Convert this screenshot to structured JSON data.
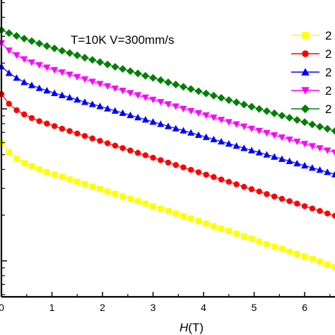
{
  "chart_data": {
    "type": "line",
    "title": "",
    "annotation": "T=10K   V=300mm/s",
    "xlabel": "",
    "xlabel_italic": "H",
    "xlabel_unit": "(T)",
    "ylabel": "",
    "xlim": [
      0,
      6.6
    ],
    "x_ticks": [
      0,
      1,
      2,
      3,
      4,
      5,
      6
    ],
    "y_scale": "log",
    "grid": false,
    "legend_position": "top-right",
    "x": [
      0.0,
      0.15,
      0.3,
      0.45,
      0.6,
      0.75,
      0.9,
      1.05,
      1.2,
      1.35,
      1.5,
      1.65,
      1.8,
      1.95,
      2.1,
      2.25,
      2.4,
      2.55,
      2.7,
      2.85,
      3.0,
      3.15,
      3.3,
      3.45,
      3.6,
      3.75,
      3.9,
      4.05,
      4.2,
      4.35,
      4.5,
      4.65,
      4.8,
      4.95,
      5.1,
      5.25,
      5.4,
      5.55,
      5.7,
      5.85,
      6.0,
      6.15,
      6.3,
      6.45,
      6.6
    ],
    "series": [
      {
        "name": "2",
        "color": "#ffff00",
        "marker": "square",
        "values": [
          0.6,
          0.52,
          0.47,
          0.44,
          0.42,
          0.4,
          0.385,
          0.37,
          0.357,
          0.344,
          0.332,
          0.32,
          0.308,
          0.297,
          0.286,
          0.276,
          0.266,
          0.256,
          0.247,
          0.238,
          0.229,
          0.221,
          0.213,
          0.205,
          0.197,
          0.19,
          0.183,
          0.176,
          0.169,
          0.163,
          0.157,
          0.151,
          0.145,
          0.14,
          0.134,
          0.129,
          0.124,
          0.12,
          0.115,
          0.111,
          0.107,
          0.103,
          0.099,
          0.095,
          0.091
        ]
      },
      {
        "name": "2",
        "color": "#ff0000",
        "marker": "circle",
        "values": [
          1.25,
          1.08,
          0.98,
          0.92,
          0.87,
          0.83,
          0.8,
          0.77,
          0.74,
          0.714,
          0.688,
          0.663,
          0.639,
          0.616,
          0.594,
          0.573,
          0.552,
          0.532,
          0.513,
          0.495,
          0.477,
          0.46,
          0.443,
          0.427,
          0.412,
          0.397,
          0.383,
          0.369,
          0.356,
          0.343,
          0.331,
          0.319,
          0.307,
          0.296,
          0.286,
          0.275,
          0.265,
          0.256,
          0.247,
          0.238,
          0.229,
          0.221,
          0.213,
          0.205,
          0.198
        ]
      },
      {
        "name": "2",
        "color": "#0000ff",
        "marker": "triangle-up",
        "values": [
          1.9,
          1.72,
          1.6,
          1.5,
          1.43,
          1.37,
          1.32,
          1.27,
          1.23,
          1.19,
          1.15,
          1.11,
          1.075,
          1.04,
          1.005,
          0.972,
          0.94,
          0.909,
          0.879,
          0.85,
          0.822,
          0.795,
          0.769,
          0.744,
          0.72,
          0.697,
          0.674,
          0.652,
          0.631,
          0.61,
          0.59,
          0.571,
          0.552,
          0.534,
          0.517,
          0.5,
          0.484,
          0.468,
          0.453,
          0.438,
          0.424,
          0.41,
          0.397,
          0.384,
          0.371
        ]
      },
      {
        "name": "2",
        "color": "#ff00ff",
        "marker": "triangle-down",
        "values": [
          2.7,
          2.42,
          2.25,
          2.12,
          2.02,
          1.94,
          1.87,
          1.8,
          1.74,
          1.68,
          1.62,
          1.565,
          1.51,
          1.46,
          1.41,
          1.362,
          1.316,
          1.272,
          1.229,
          1.188,
          1.148,
          1.11,
          1.073,
          1.037,
          1.002,
          0.969,
          0.937,
          0.906,
          0.876,
          0.847,
          0.819,
          0.792,
          0.766,
          0.741,
          0.717,
          0.694,
          0.671,
          0.649,
          0.628,
          0.608,
          0.588,
          0.569,
          0.551,
          0.533,
          0.516
        ]
      },
      {
        "name": "2",
        "color": "#008000",
        "marker": "diamond",
        "values": [
          3.3,
          3.15,
          3.02,
          2.9,
          2.79,
          2.69,
          2.59,
          2.5,
          2.41,
          2.33,
          2.25,
          2.17,
          2.1,
          2.03,
          1.96,
          1.89,
          1.83,
          1.77,
          1.71,
          1.65,
          1.6,
          1.545,
          1.494,
          1.445,
          1.397,
          1.351,
          1.306,
          1.263,
          1.221,
          1.181,
          1.142,
          1.104,
          1.068,
          1.033,
          0.999,
          0.966,
          0.934,
          0.903,
          0.874,
          0.845,
          0.817,
          0.79,
          0.764,
          0.739,
          0.715
        ]
      }
    ]
  }
}
